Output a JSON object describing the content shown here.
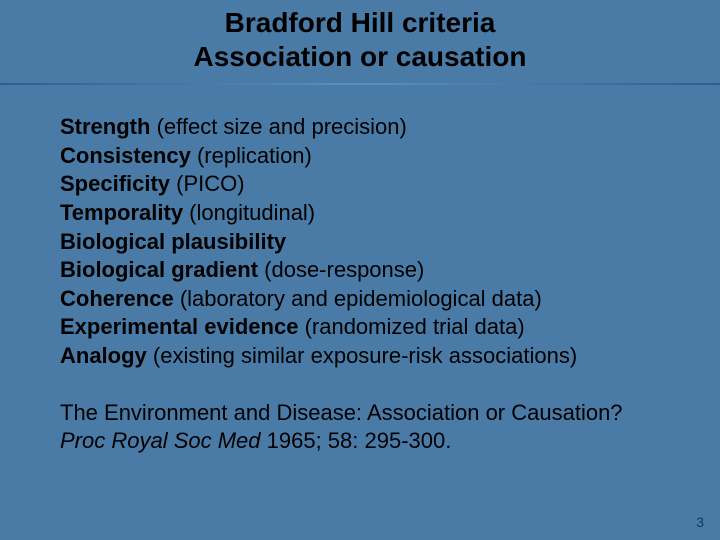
{
  "background_color": "#4a7ba6",
  "text_color": "#000000",
  "title": {
    "line1": "Bradford Hill criteria",
    "line2": "Association or causation",
    "fontsize": 28,
    "font_weight": "bold"
  },
  "criteria": [
    {
      "term": "Strength",
      "desc": " (effect size and precision)"
    },
    {
      "term": "Consistency",
      "desc": " (replication)"
    },
    {
      "term": "Specificity",
      "desc": " (PICO)"
    },
    {
      "term": "Temporality",
      "desc": " (longitudinal)"
    },
    {
      "term": "Biological plausibility",
      "desc": ""
    },
    {
      "term": "Biological gradient",
      "desc": " (dose-response)"
    },
    {
      "term": "Coherence",
      "desc": " (laboratory and epidemiological data)"
    },
    {
      "term": "Experimental evidence",
      "desc": " (randomized trial data)"
    },
    {
      "term": "Analogy",
      "desc": " (existing similar exposure-risk associations)"
    }
  ],
  "reference": {
    "prefix": "The Environment and Disease: Association or Causation? ",
    "italic": "Proc Royal Soc Med",
    "suffix": " 1965; 58: 295-300."
  },
  "page_number": "3",
  "body_fontsize": 22,
  "font_family": "Comic Sans MS"
}
